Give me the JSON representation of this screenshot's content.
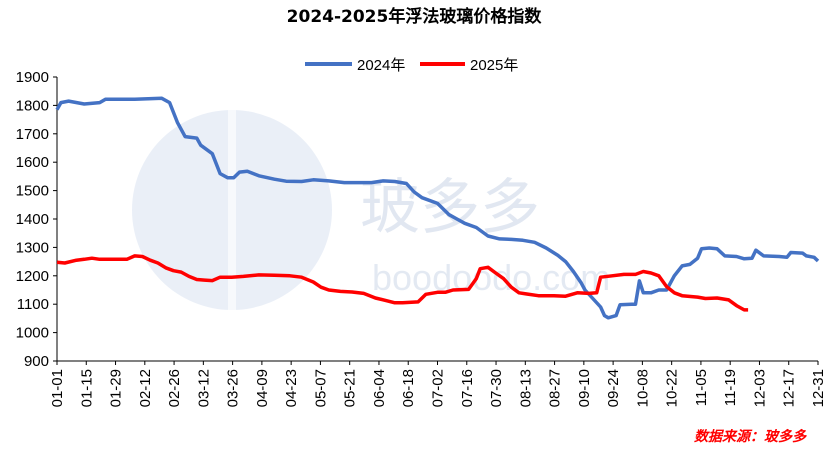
{
  "chart_data": {
    "type": "line",
    "title": "2024-2025年浮法玻璃价格指数",
    "xlabel": "",
    "ylabel": "",
    "ylim": [
      900,
      1900
    ],
    "yticks": [
      900,
      1000,
      1100,
      1200,
      1300,
      1400,
      1500,
      1600,
      1700,
      1800,
      1900
    ],
    "categories": [
      "01-01",
      "01-15",
      "01-29",
      "02-12",
      "02-26",
      "03-12",
      "03-26",
      "04-09",
      "04-23",
      "05-07",
      "05-21",
      "06-04",
      "06-18",
      "07-02",
      "07-16",
      "07-30",
      "08-13",
      "08-27",
      "09-10",
      "09-24",
      "10-08",
      "10-22",
      "11-05",
      "11-19",
      "12-03",
      "12-17",
      "12-31"
    ],
    "legend_position": "top",
    "grid": false,
    "series": [
      {
        "name": "2024年",
        "color": "#4472c4",
        "points": [
          [
            0,
            1785
          ],
          [
            2,
            1810
          ],
          [
            6,
            1815
          ],
          [
            14,
            1805
          ],
          [
            22,
            1810
          ],
          [
            25,
            1822
          ],
          [
            40,
            1822
          ],
          [
            54,
            1825
          ],
          [
            58,
            1810
          ],
          [
            62,
            1740
          ],
          [
            66,
            1690
          ],
          [
            72,
            1685
          ],
          [
            74,
            1660
          ],
          [
            80,
            1630
          ],
          [
            84,
            1560
          ],
          [
            88,
            1545
          ],
          [
            91,
            1545
          ],
          [
            94,
            1565
          ],
          [
            98,
            1568
          ],
          [
            104,
            1552
          ],
          [
            112,
            1540
          ],
          [
            118,
            1533
          ],
          [
            126,
            1532
          ],
          [
            132,
            1538
          ],
          [
            140,
            1534
          ],
          [
            148,
            1528
          ],
          [
            154,
            1528
          ],
          [
            162,
            1528
          ],
          [
            168,
            1534
          ],
          [
            174,
            1532
          ],
          [
            180,
            1525
          ],
          [
            184,
            1495
          ],
          [
            188,
            1475
          ],
          [
            196,
            1455
          ],
          [
            202,
            1415
          ],
          [
            206,
            1400
          ],
          [
            210,
            1385
          ],
          [
            216,
            1370
          ],
          [
            222,
            1340
          ],
          [
            228,
            1330
          ],
          [
            234,
            1328
          ],
          [
            240,
            1325
          ],
          [
            246,
            1318
          ],
          [
            252,
            1298
          ],
          [
            258,
            1272
          ],
          [
            262,
            1250
          ],
          [
            266,
            1215
          ],
          [
            270,
            1175
          ],
          [
            272,
            1150
          ],
          [
            276,
            1120
          ],
          [
            280,
            1090
          ],
          [
            282,
            1060
          ],
          [
            284,
            1052
          ],
          [
            288,
            1060
          ],
          [
            290,
            1098
          ],
          [
            296,
            1100
          ],
          [
            298,
            1100
          ],
          [
            300,
            1182
          ],
          [
            302,
            1140
          ],
          [
            306,
            1140
          ],
          [
            310,
            1150
          ],
          [
            314,
            1150
          ],
          [
            318,
            1200
          ],
          [
            322,
            1235
          ],
          [
            326,
            1240
          ],
          [
            330,
            1262
          ],
          [
            332,
            1295
          ],
          [
            336,
            1298
          ],
          [
            340,
            1295
          ],
          [
            344,
            1270
          ],
          [
            350,
            1268
          ],
          [
            354,
            1260
          ],
          [
            358,
            1262
          ],
          [
            360,
            1290
          ],
          [
            364,
            1270
          ],
          [
            372,
            1268
          ],
          [
            376,
            1265
          ],
          [
            378,
            1282
          ],
          [
            384,
            1280
          ],
          [
            386,
            1270
          ],
          [
            390,
            1265
          ],
          [
            392,
            1252
          ]
        ]
      },
      {
        "name": "2025年",
        "color": "#ff0000",
        "points": [
          [
            0,
            1248
          ],
          [
            4,
            1245
          ],
          [
            10,
            1255
          ],
          [
            14,
            1258
          ],
          [
            18,
            1262
          ],
          [
            22,
            1258
          ],
          [
            28,
            1258
          ],
          [
            36,
            1258
          ],
          [
            40,
            1270
          ],
          [
            44,
            1268
          ],
          [
            48,
            1255
          ],
          [
            52,
            1245
          ],
          [
            56,
            1228
          ],
          [
            60,
            1218
          ],
          [
            64,
            1213
          ],
          [
            68,
            1198
          ],
          [
            72,
            1187
          ],
          [
            76,
            1185
          ],
          [
            80,
            1183
          ],
          [
            84,
            1195
          ],
          [
            90,
            1195
          ],
          [
            96,
            1198
          ],
          [
            104,
            1203
          ],
          [
            112,
            1202
          ],
          [
            120,
            1200
          ],
          [
            126,
            1195
          ],
          [
            132,
            1178
          ],
          [
            136,
            1160
          ],
          [
            140,
            1150
          ],
          [
            146,
            1145
          ],
          [
            152,
            1143
          ],
          [
            158,
            1138
          ],
          [
            164,
            1122
          ],
          [
            170,
            1112
          ],
          [
            174,
            1105
          ],
          [
            178,
            1105
          ],
          [
            186,
            1108
          ],
          [
            190,
            1135
          ],
          [
            196,
            1142
          ],
          [
            200,
            1142
          ],
          [
            204,
            1150
          ],
          [
            212,
            1152
          ],
          [
            216,
            1190
          ],
          [
            218,
            1225
          ],
          [
            222,
            1230
          ],
          [
            226,
            1210
          ],
          [
            230,
            1190
          ],
          [
            234,
            1160
          ],
          [
            238,
            1140
          ],
          [
            242,
            1136
          ],
          [
            248,
            1130
          ],
          [
            256,
            1130
          ],
          [
            262,
            1128
          ],
          [
            268,
            1140
          ],
          [
            274,
            1138
          ],
          [
            278,
            1140
          ],
          [
            280,
            1195
          ],
          [
            286,
            1200
          ],
          [
            292,
            1205
          ],
          [
            298,
            1205
          ],
          [
            302,
            1215
          ],
          [
            306,
            1210
          ],
          [
            310,
            1200
          ],
          [
            314,
            1162
          ],
          [
            318,
            1140
          ],
          [
            322,
            1130
          ],
          [
            330,
            1125
          ],
          [
            334,
            1120
          ],
          [
            340,
            1122
          ],
          [
            346,
            1115
          ],
          [
            350,
            1095
          ],
          [
            354,
            1080
          ],
          [
            356,
            1080
          ]
        ]
      }
    ]
  },
  "legend": {
    "items": [
      {
        "label": "2024年",
        "color": "#4472c4"
      },
      {
        "label": "2025年",
        "color": "#ff0000"
      }
    ]
  },
  "watermark": {
    "text": "玻多多",
    "url": "boodoodo.com"
  },
  "source": {
    "text": "数据来源：玻多多"
  }
}
